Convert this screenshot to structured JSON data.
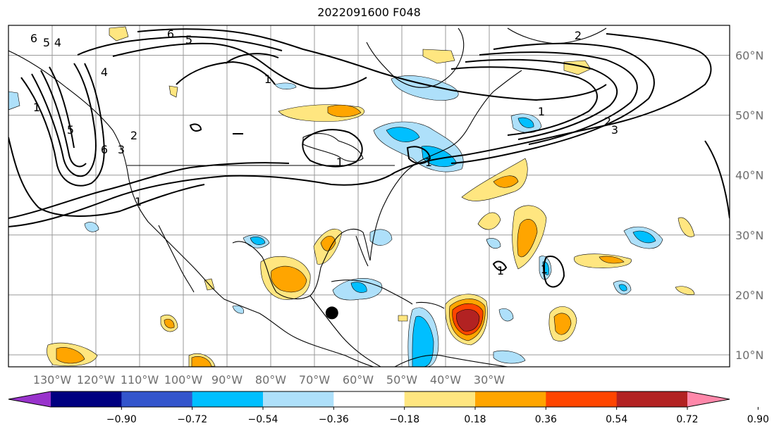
{
  "title": "2022091600 F048",
  "map": {
    "lon_range": [
      -140,
      25
    ],
    "lat_range": [
      8,
      65
    ],
    "lon_ticks": [
      {
        "lon": -130,
        "label": "130°W"
      },
      {
        "lon": -120,
        "label": "120°W"
      },
      {
        "lon": -110,
        "label": "110°W"
      },
      {
        "lon": -100,
        "label": "100°W"
      },
      {
        "lon": -90,
        "label": "90°W"
      },
      {
        "lon": -80,
        "label": "80°W"
      },
      {
        "lon": -70,
        "label": "70°W"
      },
      {
        "lon": -60,
        "label": "60°W"
      },
      {
        "lon": -50,
        "label": "50°W"
      },
      {
        "lon": -40,
        "label": "40°W"
      },
      {
        "lon": -30,
        "label": "30°W"
      }
    ],
    "lat_ticks": [
      {
        "lat": 10,
        "label": "10°N"
      },
      {
        "lat": 20,
        "label": "20°N"
      },
      {
        "lat": 30,
        "label": "30°N"
      },
      {
        "lat": 40,
        "label": "40°N"
      },
      {
        "lat": 50,
        "label": "50°N"
      },
      {
        "lat": 60,
        "label": "60°N"
      }
    ],
    "contour_labels": [
      "6",
      "5",
      "4",
      "6",
      "5",
      "2",
      "1",
      "4",
      "5",
      "1",
      "6",
      "3",
      "2",
      "1",
      "1",
      "1",
      "1",
      "1",
      "2",
      "3",
      "1"
    ],
    "storm_marker": {
      "lon": -66,
      "lat": 17
    }
  },
  "colorbar": {
    "colors": [
      "#9933cc",
      "#000080",
      "#3355cc",
      "#00bfff",
      "#aee0fa",
      "#ffffff",
      "#ffe680",
      "#ffa500",
      "#ff4500",
      "#b22222",
      "#ff88aa"
    ],
    "tick_labels": [
      "−0.90",
      "−0.72",
      "−0.54",
      "−0.36",
      "−0.18",
      "0.18",
      "0.36",
      "0.54",
      "0.72",
      "0.90"
    ]
  }
}
